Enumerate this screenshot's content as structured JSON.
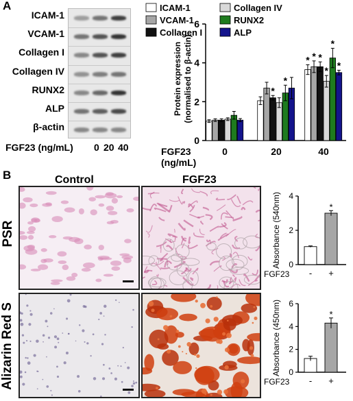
{
  "panel_a": {
    "letter": "A",
    "blot_labels": [
      "ICAM-1",
      "VCAM-1",
      "Collagen I",
      "Collagen IV",
      "RUNX2",
      "ALP",
      "β-actin"
    ],
    "lane_title": "FGF23 (ng/mL)",
    "lanes": [
      "0",
      "20",
      "40"
    ]
  },
  "panel_b": {
    "letter": "B",
    "col_control": "Control",
    "col_fgf23": "FGF23",
    "row_psr": "PSR",
    "row_ars": "Alizarin Red S"
  },
  "colors": {
    "ICAM-1": "#ffffff",
    "Collagen IV": "#d9d9d9",
    "VCAM-1": "#a6a6a6",
    "RUNX2": "#1e7b1e",
    "Collagen I": "#111111",
    "ALP": "#14148c",
    "bar_plus": "#a6a6a6"
  },
  "chart_data": [
    {
      "type": "bar",
      "ylabel": "Protein expression (normalised to β-actin)",
      "ylabel_line1": "Protein expression",
      "ylabel_line2": "(normalised to β-actin)",
      "xlabel_line1": "FGF23",
      "xlabel_line2": "(ng/mL)",
      "categories": [
        "0",
        "20",
        "40"
      ],
      "ylim": [
        0,
        6
      ],
      "yticks": [
        0,
        2,
        4,
        6
      ],
      "legend": "top",
      "series": [
        {
          "name": "ICAM-1",
          "values": [
            1.0,
            2.05,
            3.65
          ],
          "errors": [
            0.07,
            0.2,
            0.25
          ],
          "sig": [
            false,
            false,
            true
          ]
        },
        {
          "name": "VCAM-1",
          "values": [
            1.05,
            2.7,
            3.8
          ],
          "errors": [
            0.07,
            0.3,
            0.3
          ],
          "sig": [
            false,
            false,
            true
          ]
        },
        {
          "name": "Collagen I",
          "values": [
            1.05,
            2.2,
            3.8
          ],
          "errors": [
            0.07,
            0.12,
            0.25
          ],
          "sig": [
            false,
            true,
            true
          ]
        },
        {
          "name": "Collagen IV",
          "values": [
            1.1,
            1.95,
            3.05
          ],
          "errors": [
            0.07,
            0.25,
            0.3
          ],
          "sig": [
            false,
            false,
            true
          ]
        },
        {
          "name": "RUNX2",
          "values": [
            1.3,
            2.45,
            4.25
          ],
          "errors": [
            0.2,
            0.4,
            0.5
          ],
          "sig": [
            false,
            true,
            true
          ]
        },
        {
          "name": "ALP",
          "values": [
            1.05,
            2.7,
            3.5
          ],
          "errors": [
            0.08,
            0.55,
            0.12
          ],
          "sig": [
            false,
            false,
            true
          ]
        }
      ],
      "sig_marker": "*"
    },
    {
      "type": "bar",
      "ylabel": "Absorbance (540nm)",
      "categories": [
        "-",
        "+"
      ],
      "group_label": "FGF23",
      "values": [
        1.05,
        3.0
      ],
      "errors": [
        0.04,
        0.15
      ],
      "ylim": [
        0,
        4
      ],
      "yticks": [
        0,
        2,
        4
      ],
      "sig": [
        false,
        true
      ],
      "sig_marker": "*"
    },
    {
      "type": "bar",
      "ylabel": "Absorbance (450nm)",
      "categories": [
        "-",
        "+"
      ],
      "group_label": "FGF23",
      "values": [
        1.2,
        4.3
      ],
      "errors": [
        0.2,
        0.45
      ],
      "ylim": [
        0,
        6
      ],
      "yticks": [
        0,
        2,
        4,
        6
      ],
      "sig": [
        false,
        true
      ],
      "sig_marker": "*"
    }
  ]
}
